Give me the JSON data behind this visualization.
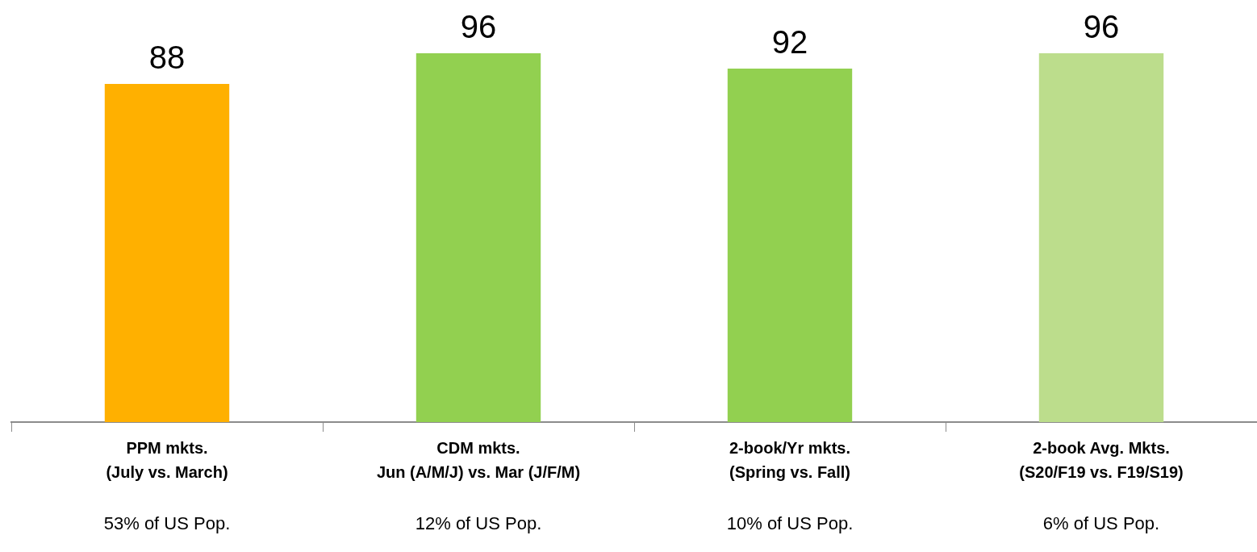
{
  "chart_data": {
    "type": "bar",
    "categories": [
      "PPM mkts.\n(July vs. March)",
      "CDM mkts.\nJun (A/M/J) vs. Mar (J/F/M)",
      "2-book/Yr mkts.\n(Spring vs. Fall)",
      "2-book Avg. Mkts.\n(S20/F19 vs. F19/S19)"
    ],
    "values": [
      88,
      96,
      92,
      96
    ],
    "colors": [
      "#ffb000",
      "#92d050",
      "#92d050",
      "#bcdd8c"
    ],
    "data_labels": true,
    "tick_labels": "x",
    "annotations": [
      "53% of US Pop.",
      "12% of US Pop.",
      "10% of US Pop.",
      "6% of US Pop."
    ]
  }
}
